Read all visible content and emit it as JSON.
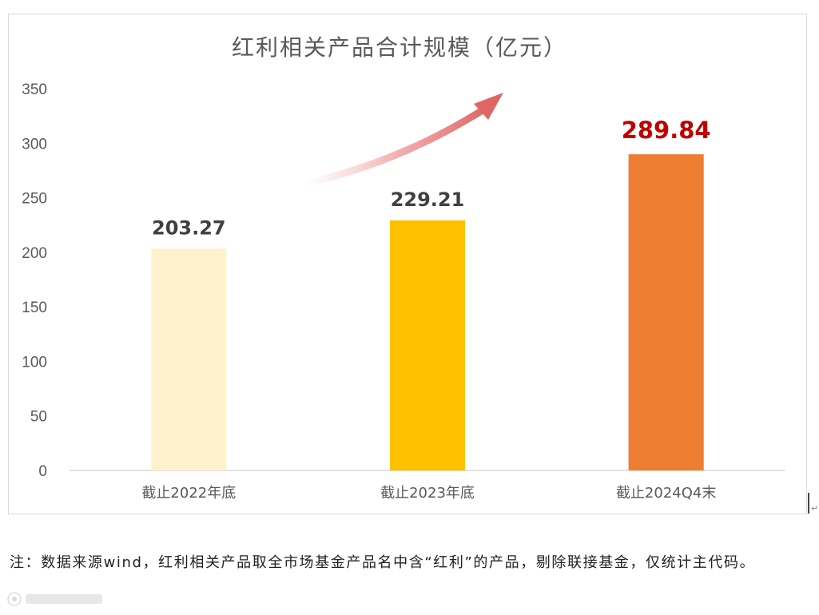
{
  "chart_data": {
    "type": "bar",
    "title": "红利相关产品合计规模（亿元）",
    "categories": [
      "截止2022年底",
      "截止2023年底",
      "截止2024Q4末"
    ],
    "values": [
      203.27,
      229.21,
      289.84
    ],
    "value_labels": [
      "203.27",
      "229.21",
      "289.84"
    ],
    "highlight_index": 2,
    "ylim": [
      0,
      350
    ],
    "yticks": [
      0,
      50,
      100,
      150,
      200,
      250,
      300,
      350
    ],
    "grid": false,
    "legend": "none",
    "bar_colors": [
      "#fff2cc",
      "#ffc000",
      "#ed7d31"
    ],
    "highlight_label_color": "#c00000",
    "trend_arrow": true
  },
  "footnote": {
    "text": "注：数据来源wind，红利相关产品取全市场基金产品名中含“红利”的产品，剔除联接基金，仅统计主代码。"
  }
}
